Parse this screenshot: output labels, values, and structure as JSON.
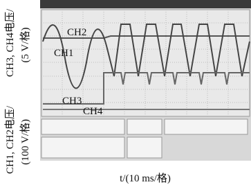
{
  "waveform_labels": {
    "ch2": "CH2",
    "ch1": "CH1",
    "ch3": "CH3",
    "ch4": "CH4"
  },
  "y_axis_labels": {
    "upper_name": "CH3, CH4电压/",
    "upper_scale": "(5 V/格)",
    "lower_name": "CH1, CH2电压/",
    "lower_scale": "(100 V/格)"
  },
  "x_axis_label": "t/(10 ms/格)"
}
